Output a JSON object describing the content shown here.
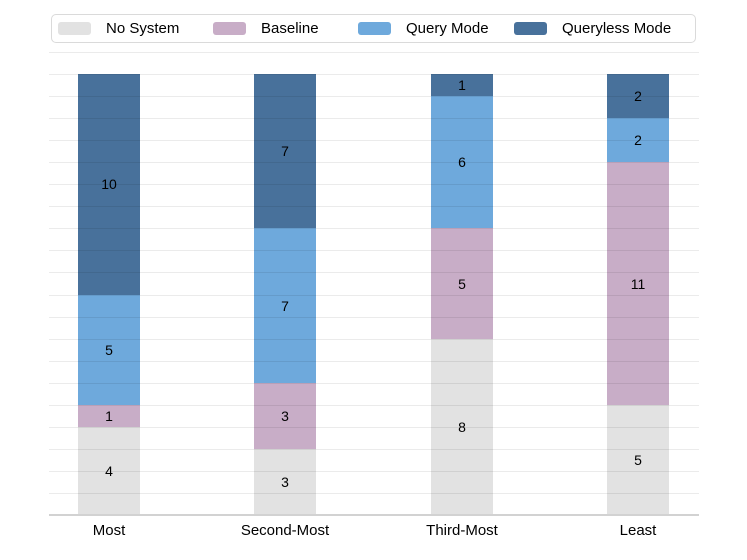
{
  "chart_data": {
    "type": "bar",
    "stacked": true,
    "title": "",
    "xlabel": "",
    "ylabel": "",
    "categories": [
      "Most",
      "Second-Most",
      "Third-Most",
      "Least"
    ],
    "series": [
      {
        "name": "No System",
        "color": "#e2e2e2",
        "values": [
          4,
          3,
          8,
          5
        ]
      },
      {
        "name": "Baseline",
        "color": "#c8adc7",
        "values": [
          1,
          3,
          5,
          11
        ]
      },
      {
        "name": "Query Mode",
        "color": "#6ea9dc",
        "values": [
          5,
          7,
          6,
          2
        ]
      },
      {
        "name": "Queryless Mode",
        "color": "#48719b",
        "values": [
          10,
          7,
          1,
          2
        ]
      }
    ],
    "totals_per_bar": 20,
    "ylim": [
      0,
      21
    ],
    "grid": "horizontal gridline every 1 unit, drawn over bars",
    "grid_color": "rgba(0,0,0,0.08)",
    "axis_color": "#d2d2d2",
    "bar_value_labels": "each segment shows its count, centered, black",
    "legend_position": "top, boxed, horizontal",
    "y_tick_labels_visible": false
  },
  "legend": {
    "items": [
      {
        "label": "No System",
        "color": "#e2e2e2"
      },
      {
        "label": "Baseline",
        "color": "#c8adc7"
      },
      {
        "label": "Query Mode",
        "color": "#6ea9dc"
      },
      {
        "label": "Queryless Mode",
        "color": "#48719b"
      }
    ]
  }
}
